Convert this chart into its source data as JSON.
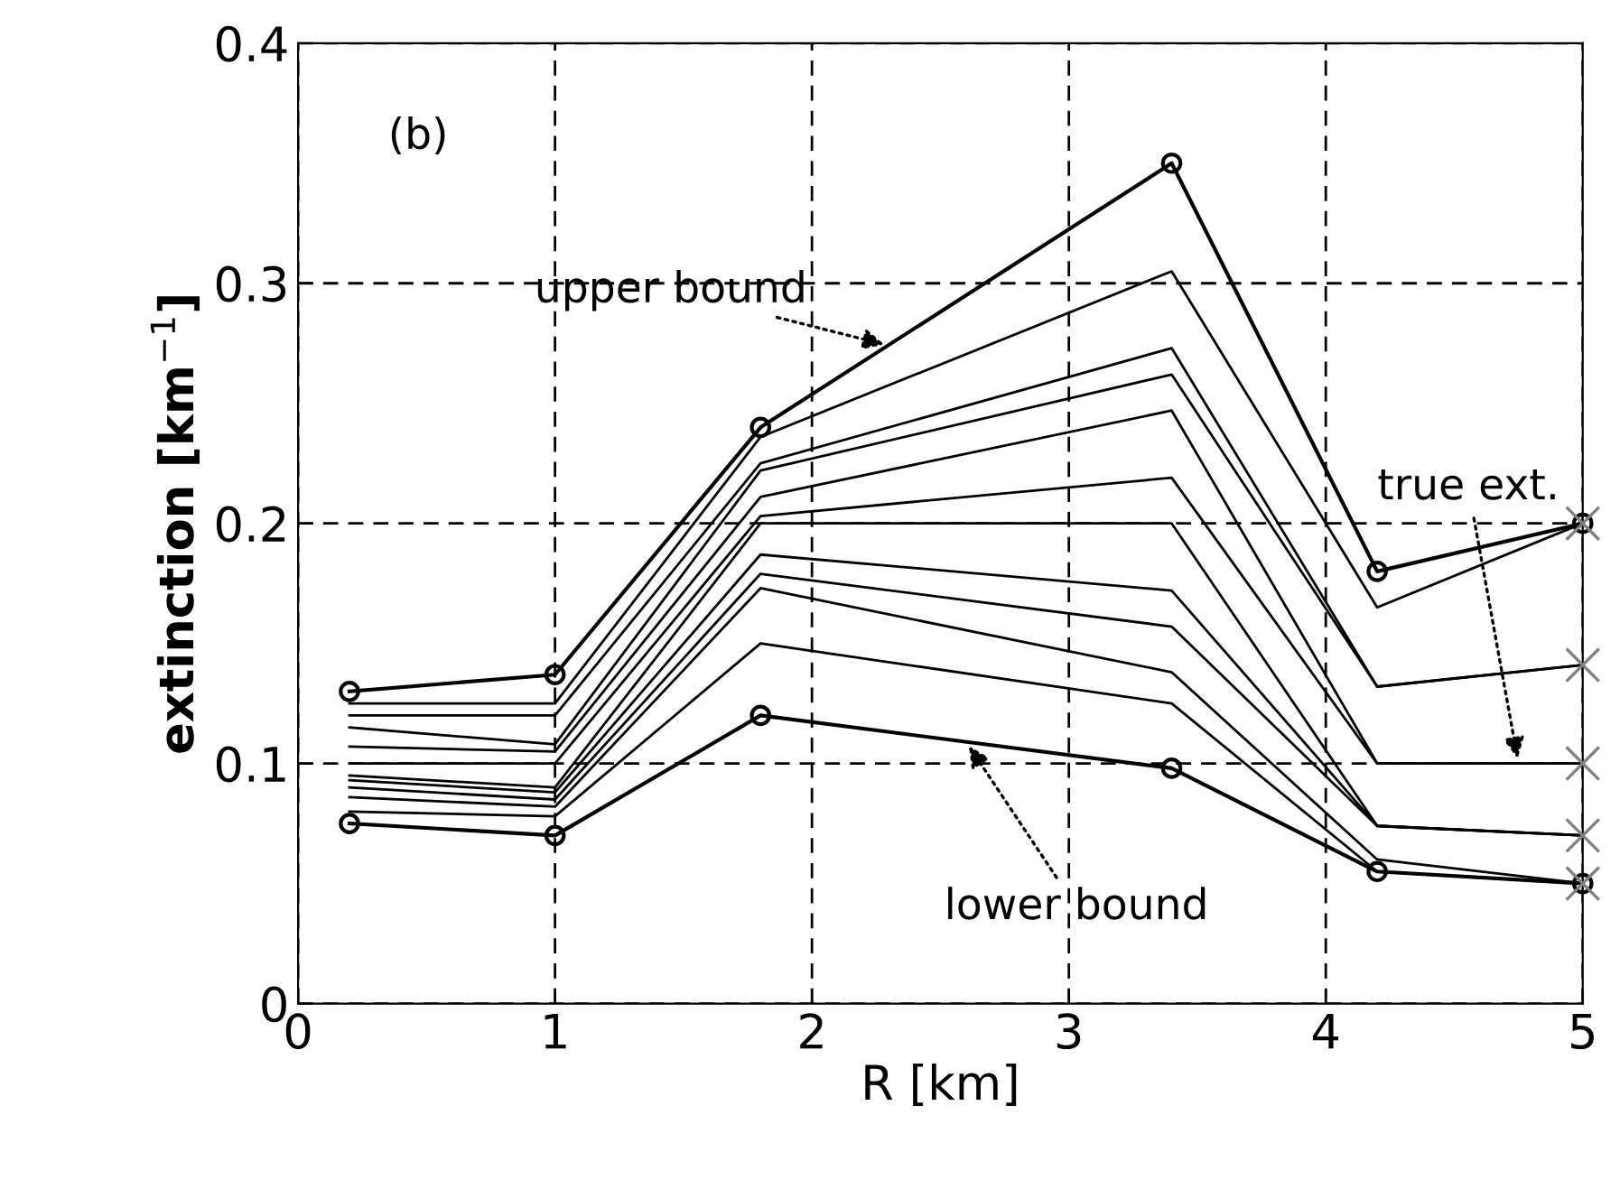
{
  "chart_data": {
    "type": "line",
    "xlabel": "R [km]",
    "ylabel": "extinction [km$^{−1}$]",
    "x": [
      0.2,
      1,
      1.8,
      3.4,
      4.2,
      5
    ],
    "xlim": [
      0,
      5
    ],
    "xticks": [
      0,
      1,
      2,
      3,
      4,
      5
    ],
    "ylim": [
      0,
      0.4
    ],
    "yticks": [
      0,
      0.1,
      0.2,
      0.3,
      0.4
    ],
    "grid": true,
    "line_style": "solid",
    "series": [
      {
        "color": "#000000",
        "marker": "circle",
        "values": [
          0.13,
          0.137,
          0.24,
          0.35,
          0.18,
          0.2
        ]
      },
      {
        "color": "#000000",
        "marker": "circle",
        "values": [
          0.075,
          0.07,
          0.12,
          0.098,
          0.055,
          0.05
        ]
      },
      {
        "color": "#000000",
        "marker": "none",
        "values": [
          0.125,
          0.125,
          0.236,
          0.305,
          0.165,
          0.2
        ]
      },
      {
        "color": "#000000",
        "marker": "none",
        "values": [
          0.12,
          0.12,
          0.225,
          0.273,
          0.132,
          0.141
        ]
      },
      {
        "color": "#000000",
        "marker": "none",
        "values": [
          0.115,
          0.108,
          0.222,
          0.262,
          0.132,
          0.141
        ]
      },
      {
        "color": "#000000",
        "marker": "none",
        "values": [
          0.107,
          0.105,
          0.211,
          0.247,
          0.1,
          0.1
        ]
      },
      {
        "color": "#000000",
        "marker": "none",
        "values": [
          0.1,
          0.1,
          0.203,
          0.219,
          0.1,
          0.1
        ]
      },
      {
        "color": "#000000",
        "marker": "none",
        "values": [
          0.095,
          0.09,
          0.2,
          0.2,
          0.074,
          0.07
        ]
      },
      {
        "color": "#000000",
        "marker": "none",
        "values": [
          0.093,
          0.088,
          0.187,
          0.172,
          0.074,
          0.07
        ]
      },
      {
        "color": "#000000",
        "marker": "none",
        "values": [
          0.09,
          0.085,
          0.179,
          0.157,
          0.074,
          0.07
        ]
      },
      {
        "color": "#000000",
        "marker": "none",
        "values": [
          0.086,
          0.082,
          0.173,
          0.138,
          0.06,
          0.05
        ]
      },
      {
        "color": "#000000",
        "marker": "none",
        "values": [
          0.08,
          0.078,
          0.15,
          0.125,
          0.055,
          0.05
        ]
      },
      {
        "type": "scatter",
        "color": "#808080",
        "marker": "cross",
        "values": [
          null,
          null,
          null,
          null,
          null,
          0.2
        ]
      },
      {
        "type": "scatter",
        "color": "#808080",
        "marker": "cross",
        "values": [
          null,
          null,
          null,
          null,
          null,
          0.141
        ]
      },
      {
        "type": "scatter",
        "color": "#808080",
        "marker": "cross",
        "values": [
          null,
          null,
          null,
          null,
          null,
          0.1
        ]
      },
      {
        "type": "scatter",
        "color": "#808080",
        "marker": "cross",
        "values": [
          null,
          null,
          null,
          null,
          null,
          0.07
        ]
      },
      {
        "type": "scatter",
        "color": "#808080",
        "marker": "cross",
        "values": [
          null,
          null,
          null,
          null,
          null,
          0.05
        ]
      }
    ],
    "annotations": [
      "(b)",
      {
        "text": "upper bound",
        "x": 2.3,
        "y": 0.274
      },
      {
        "text": "true ext.",
        "x": 4.75,
        "y": 0.1
      },
      {
        "text": "lower bound",
        "x": 2.6,
        "y": 0.109
      }
    ]
  }
}
